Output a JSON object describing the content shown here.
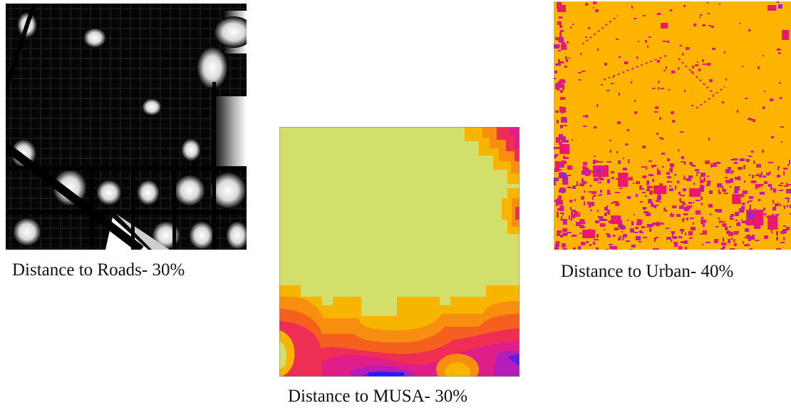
{
  "panels": [
    {
      "key": "roads",
      "caption": "Distance to Roads- 30%"
    },
    {
      "key": "musa",
      "caption": "Distance to MUSA- 30%"
    },
    {
      "key": "urban",
      "caption": "Distance to Urban- 40%"
    }
  ],
  "colors": {
    "roads_background": "#000000",
    "roads_highlight": "#ffffff",
    "musa_base": "#d2df6a",
    "musa_bands": [
      "#f7b500",
      "#f88e10",
      "#f5601e",
      "#ef2e53",
      "#df1e8a",
      "#b41eb8",
      "#5c1ee0",
      "#1d1dff"
    ],
    "urban_base": "#fcb400",
    "urban_patches": [
      "#e8196e",
      "#c21ea0",
      "#8c2bd0"
    ]
  },
  "icons": [
    "raster-map-roads",
    "raster-map-musa",
    "raster-map-urban"
  ]
}
